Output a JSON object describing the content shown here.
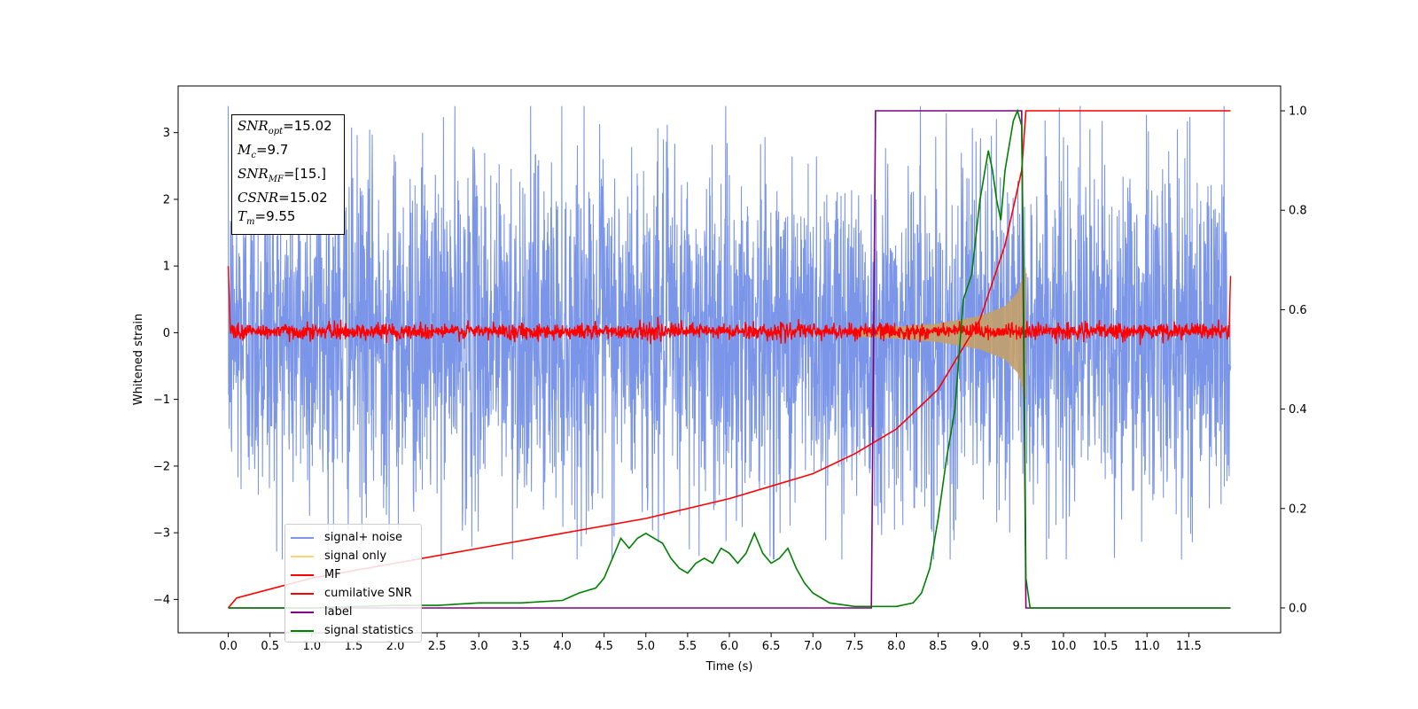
{
  "chart_data": {
    "type": "line",
    "title": "",
    "xlabel": "Time (s)",
    "ylabel": "Whitened strain",
    "xlim": [
      -0.6,
      12.6
    ],
    "ylim": [
      -4.5,
      3.7
    ],
    "y2lim": [
      -0.05,
      1.05
    ],
    "xticks": [
      "0.0",
      "0.5",
      "1.0",
      "1.5",
      "2.0",
      "2.5",
      "3.0",
      "3.5",
      "4.0",
      "4.5",
      "5.0",
      "5.5",
      "6.0",
      "6.5",
      "7.0",
      "7.5",
      "8.0",
      "8.5",
      "9.0",
      "9.5",
      "10.0",
      "10.5",
      "11.0",
      "11.5"
    ],
    "yticks": [
      "−4",
      "−3",
      "−2",
      "−1",
      "0",
      "1",
      "2",
      "3"
    ],
    "y2ticks": [
      "0.0",
      "0.2",
      "0.4",
      "0.6",
      "0.8",
      "1.0"
    ],
    "legend_position": "lower-left",
    "annotations": {
      "snr_opt": "=15.02",
      "mc": "=9.7",
      "snr_mf": "=[15.]",
      "csnr": "=15.02",
      "tm": "=9.55"
    },
    "series": [
      {
        "name": "signal+ noise",
        "color": "#7b96e8",
        "axis": "left",
        "description_values": {
          "x_range": [
            0.0,
            12.0
          ],
          "typical_amplitude": 1.5
        }
      },
      {
        "name": "signal only",
        "color": "#c4a06a",
        "axis": "left",
        "x": [
          7.5,
          8.0,
          8.5,
          9.0,
          9.3,
          9.45,
          9.55,
          9.56
        ],
        "amplitude": [
          0.06,
          0.09,
          0.14,
          0.25,
          0.4,
          0.6,
          1.0,
          0.0
        ]
      },
      {
        "name": "MF",
        "color": "#ff0000",
        "axis": "left",
        "x_range": [
          0.0,
          12.0
        ],
        "typical_amplitude": 0.06
      },
      {
        "name": "cumilative SNR",
        "color": "#ff0000",
        "axis": "right",
        "x": [
          0.0,
          0.1,
          1.0,
          2.0,
          3.0,
          4.0,
          5.0,
          6.0,
          7.0,
          7.5,
          8.0,
          8.5,
          9.0,
          9.3,
          9.5,
          9.55,
          9.56,
          12.0
        ],
        "y": [
          0.0,
          0.02,
          0.06,
          0.09,
          0.12,
          0.15,
          0.18,
          0.22,
          0.27,
          0.31,
          0.36,
          0.44,
          0.58,
          0.73,
          0.88,
          1.0,
          1.0,
          1.0
        ]
      },
      {
        "name": "label",
        "color": "#800080",
        "axis": "right",
        "x": [
          0.0,
          7.7,
          7.75,
          9.5,
          9.55,
          12.0
        ],
        "y": [
          0.0,
          0.0,
          1.0,
          1.0,
          0.0,
          0.0
        ]
      },
      {
        "name": "signal statistics",
        "color": "#008000",
        "axis": "right",
        "x": [
          0.0,
          0.5,
          1.0,
          2.0,
          2.5,
          3.0,
          3.5,
          4.0,
          4.2,
          4.4,
          4.5,
          4.6,
          4.7,
          4.8,
          4.9,
          5.0,
          5.1,
          5.2,
          5.3,
          5.4,
          5.5,
          5.6,
          5.7,
          5.8,
          5.9,
          6.0,
          6.1,
          6.2,
          6.3,
          6.4,
          6.5,
          6.6,
          6.7,
          6.8,
          6.9,
          7.0,
          7.2,
          7.5,
          7.8,
          8.0,
          8.2,
          8.3,
          8.4,
          8.5,
          8.6,
          8.7,
          8.8,
          8.9,
          9.0,
          9.1,
          9.15,
          9.2,
          9.25,
          9.3,
          9.4,
          9.45,
          9.5,
          9.52,
          9.55,
          9.6,
          9.7,
          10.0,
          11.0,
          12.0
        ],
        "y": [
          0.0,
          0.0,
          0.0,
          0.005,
          0.005,
          0.01,
          0.01,
          0.015,
          0.03,
          0.04,
          0.06,
          0.1,
          0.14,
          0.12,
          0.14,
          0.15,
          0.14,
          0.13,
          0.1,
          0.08,
          0.07,
          0.09,
          0.1,
          0.09,
          0.12,
          0.11,
          0.09,
          0.11,
          0.15,
          0.11,
          0.09,
          0.1,
          0.12,
          0.08,
          0.05,
          0.03,
          0.01,
          0.003,
          0.003,
          0.003,
          0.01,
          0.03,
          0.08,
          0.18,
          0.3,
          0.4,
          0.62,
          0.67,
          0.82,
          0.92,
          0.88,
          0.82,
          0.78,
          0.88,
          0.98,
          1.0,
          0.97,
          0.7,
          0.06,
          0.0,
          0.0,
          0.0,
          0.0,
          0.0
        ]
      }
    ]
  }
}
